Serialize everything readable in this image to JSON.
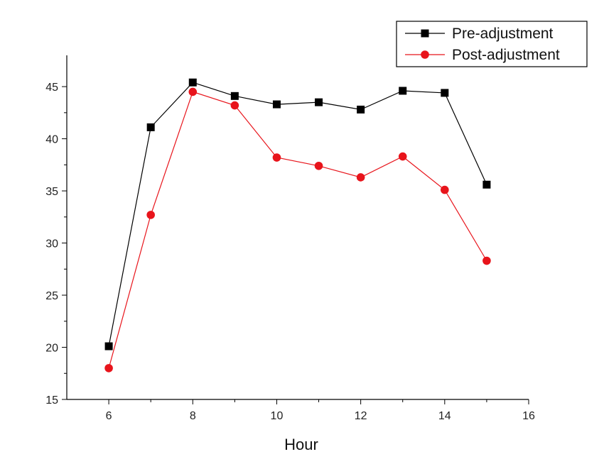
{
  "chart_data": {
    "type": "line",
    "xlabel": "Hour",
    "ylabel": "",
    "xlim": [
      5,
      16
    ],
    "ylim": [
      15,
      48
    ],
    "x_ticks": [
      6,
      8,
      10,
      12,
      14,
      16
    ],
    "y_ticks": [
      15,
      20,
      25,
      30,
      35,
      40,
      45
    ],
    "grid": false,
    "legend": "top-right",
    "series": [
      {
        "name": "Pre-adjustment",
        "color": "#000000",
        "marker": "square",
        "x": [
          6,
          7,
          8,
          9,
          10,
          11,
          12,
          13,
          14,
          15
        ],
        "values": [
          20.1,
          41.1,
          45.4,
          44.1,
          43.3,
          43.5,
          42.8,
          44.6,
          44.4,
          35.6
        ]
      },
      {
        "name": "Post-adjustment",
        "color": "#e8141b",
        "marker": "circle",
        "x": [
          6,
          7,
          8,
          9,
          10,
          11,
          12,
          13,
          14,
          15
        ],
        "values": [
          18.0,
          32.7,
          44.5,
          43.2,
          38.2,
          37.4,
          36.3,
          38.3,
          35.1,
          28.3
        ]
      }
    ]
  }
}
